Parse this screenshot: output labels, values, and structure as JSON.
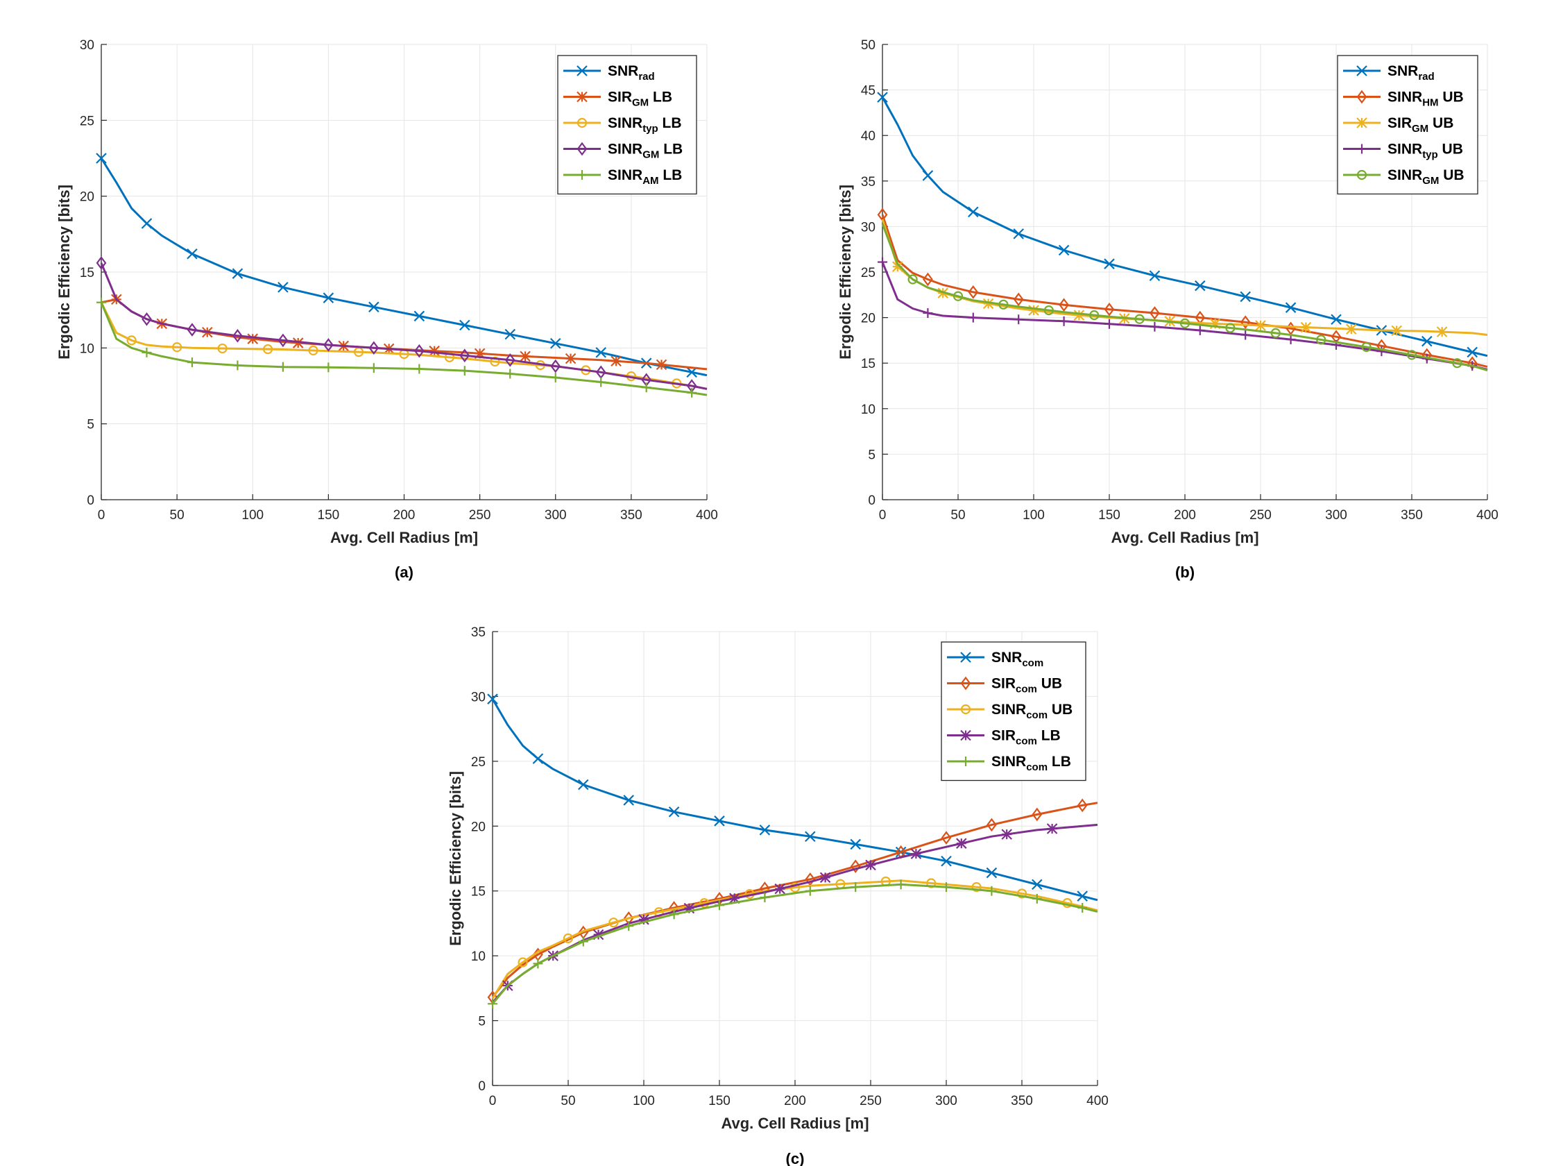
{
  "colors": {
    "blue": "#0072BD",
    "orange": "#D95319",
    "yellow": "#EDB120",
    "purple": "#7E2F8E",
    "green": "#77AC30"
  },
  "chart_data": [
    {
      "type": "line",
      "caption": "(a)",
      "xlabel": "Avg. Cell Radius [m]",
      "ylabel": "Ergodic Efficiency [bits]",
      "xlim": [
        0,
        400
      ],
      "ylim": [
        0,
        30
      ],
      "xticks": [
        0,
        50,
        100,
        150,
        200,
        250,
        300,
        350,
        400
      ],
      "yticks": [
        0,
        5,
        10,
        15,
        20,
        25,
        30
      ],
      "grid": true,
      "legend_position": "top-right",
      "x": [
        0,
        10,
        20,
        30,
        40,
        60,
        90,
        120,
        150,
        180,
        210,
        240,
        270,
        300,
        330,
        360,
        390,
        400
      ],
      "series": [
        {
          "name": "SNR",
          "sub": "rad",
          "suffix": "",
          "color": "#0072BD",
          "marker": "x",
          "values": [
            22.5,
            20.9,
            19.2,
            18.2,
            17.4,
            16.2,
            14.9,
            14.0,
            13.3,
            12.7,
            12.1,
            11.5,
            10.9,
            10.3,
            9.7,
            9.0,
            8.4,
            8.2
          ],
          "mx": [
            0,
            30,
            60,
            90,
            120,
            150,
            180,
            210,
            240,
            270,
            300,
            330,
            360,
            390
          ]
        },
        {
          "name": "SIR",
          "sub": "GM",
          "suffix": "LB",
          "color": "#D95319",
          "marker": "asterisk",
          "values": [
            13.0,
            13.2,
            12.4,
            11.9,
            11.6,
            11.2,
            10.7,
            10.4,
            10.2,
            10.0,
            9.85,
            9.7,
            9.5,
            9.35,
            9.2,
            9.0,
            8.7,
            8.6
          ],
          "mx": [
            10,
            40,
            70,
            100,
            130,
            160,
            190,
            220,
            250,
            280,
            310,
            340,
            370
          ]
        },
        {
          "name": "SINR",
          "sub": "typ",
          "suffix": "LB",
          "color": "#EDB120",
          "marker": "circle",
          "values": [
            13.0,
            11.0,
            10.5,
            10.2,
            10.1,
            10.0,
            9.95,
            9.9,
            9.8,
            9.7,
            9.55,
            9.3,
            9.0,
            8.8,
            8.4,
            8.0,
            7.5,
            7.3
          ],
          "mx": [
            20,
            50,
            80,
            110,
            140,
            170,
            200,
            230,
            260,
            290,
            320,
            350,
            380
          ]
        },
        {
          "name": "SINR",
          "sub": "GM",
          "suffix": "LB",
          "color": "#7E2F8E",
          "marker": "diamond",
          "values": [
            15.6,
            13.2,
            12.4,
            11.9,
            11.6,
            11.2,
            10.8,
            10.5,
            10.2,
            10.0,
            9.8,
            9.5,
            9.2,
            8.8,
            8.4,
            7.9,
            7.5,
            7.3
          ],
          "mx": [
            0,
            30,
            60,
            90,
            120,
            150,
            180,
            210,
            240,
            270,
            300,
            330,
            360,
            390
          ]
        },
        {
          "name": "SINR",
          "sub": "AM",
          "suffix": "LB",
          "color": "#77AC30",
          "marker": "plus",
          "values": [
            13.0,
            10.6,
            10.0,
            9.7,
            9.45,
            9.05,
            8.85,
            8.75,
            8.72,
            8.68,
            8.62,
            8.5,
            8.3,
            8.05,
            7.75,
            7.4,
            7.05,
            6.9
          ],
          "mx": [
            0,
            30,
            60,
            90,
            120,
            150,
            180,
            210,
            240,
            270,
            300,
            330,
            360,
            390
          ]
        }
      ]
    },
    {
      "type": "line",
      "caption": "(b)",
      "xlabel": "Avg. Cell Radius [m]",
      "ylabel": "Ergodic Efficiency [bits]",
      "xlim": [
        0,
        400
      ],
      "ylim": [
        0,
        50
      ],
      "xticks": [
        0,
        50,
        100,
        150,
        200,
        250,
        300,
        350,
        400
      ],
      "yticks": [
        0,
        5,
        10,
        15,
        20,
        25,
        30,
        35,
        40,
        45,
        50
      ],
      "grid": true,
      "legend_position": "top-right",
      "x": [
        0,
        10,
        20,
        30,
        40,
        60,
        90,
        120,
        150,
        180,
        210,
        240,
        270,
        300,
        330,
        360,
        390,
        400
      ],
      "series": [
        {
          "name": "SNR",
          "sub": "rad",
          "suffix": "",
          "color": "#0072BD",
          "marker": "x",
          "values": [
            44.2,
            41.2,
            37.8,
            35.6,
            33.8,
            31.6,
            29.2,
            27.4,
            25.9,
            24.6,
            23.5,
            22.3,
            21.1,
            19.8,
            18.6,
            17.4,
            16.2,
            15.8
          ],
          "mx": [
            0,
            30,
            60,
            90,
            120,
            150,
            180,
            210,
            240,
            270,
            300,
            330,
            360,
            390
          ]
        },
        {
          "name": "SINR",
          "sub": "HM",
          "suffix": "UB",
          "color": "#D95319",
          "marker": "diamond",
          "values": [
            31.3,
            26.3,
            24.9,
            24.2,
            23.6,
            22.8,
            22.0,
            21.4,
            20.9,
            20.5,
            20.0,
            19.5,
            18.8,
            17.9,
            16.9,
            15.9,
            15.0,
            14.6
          ],
          "mx": [
            0,
            30,
            60,
            90,
            120,
            150,
            180,
            210,
            240,
            270,
            300,
            330,
            360,
            390
          ]
        },
        {
          "name": "SIR",
          "sub": "GM",
          "suffix": "UB",
          "color": "#EDB120",
          "marker": "asterisk",
          "values": [
            30.8,
            25.6,
            24.2,
            23.3,
            22.7,
            21.8,
            21.0,
            20.4,
            20.0,
            19.7,
            19.4,
            19.2,
            19.0,
            18.8,
            18.6,
            18.5,
            18.3,
            18.1
          ],
          "mx": [
            10,
            40,
            70,
            100,
            130,
            160,
            190,
            220,
            250,
            280,
            310,
            340,
            370
          ]
        },
        {
          "name": "SINR",
          "sub": "typ",
          "suffix": "UB",
          "color": "#7E2F8E",
          "marker": "plus",
          "values": [
            26.1,
            22.0,
            21.0,
            20.5,
            20.2,
            20.0,
            19.8,
            19.6,
            19.3,
            19.0,
            18.6,
            18.1,
            17.6,
            17.0,
            16.3,
            15.5,
            14.7,
            14.3
          ],
          "mx": [
            0,
            30,
            60,
            90,
            120,
            150,
            180,
            210,
            240,
            270,
            300,
            330,
            360,
            390
          ]
        },
        {
          "name": "SINR",
          "sub": "GM",
          "suffix": "UB",
          "color": "#77AC30",
          "marker": "circle",
          "values": [
            30.3,
            25.9,
            24.2,
            23.3,
            22.8,
            21.9,
            21.2,
            20.6,
            20.1,
            19.7,
            19.2,
            18.7,
            18.1,
            17.3,
            16.5,
            15.6,
            14.7,
            14.2
          ],
          "mx": [
            20,
            50,
            80,
            110,
            140,
            170,
            200,
            230,
            260,
            290,
            320,
            350,
            380
          ]
        }
      ]
    },
    {
      "type": "line",
      "caption": "(c)",
      "xlabel": "Avg. Cell Radius [m]",
      "ylabel": "Ergodic Efficiency [bits]",
      "xlim": [
        0,
        400
      ],
      "ylim": [
        0,
        35
      ],
      "xticks": [
        0,
        50,
        100,
        150,
        200,
        250,
        300,
        350,
        400
      ],
      "yticks": [
        0,
        5,
        10,
        15,
        20,
        25,
        30,
        35
      ],
      "grid": true,
      "legend_position": "top-right",
      "x": [
        0,
        10,
        20,
        30,
        40,
        60,
        90,
        120,
        150,
        180,
        210,
        240,
        270,
        300,
        330,
        360,
        390,
        400
      ],
      "series": [
        {
          "name": "SNR",
          "sub": "com",
          "suffix": "",
          "color": "#0072BD",
          "marker": "x",
          "values": [
            29.8,
            27.8,
            26.2,
            25.2,
            24.4,
            23.2,
            22.0,
            21.1,
            20.4,
            19.7,
            19.2,
            18.6,
            18.0,
            17.3,
            16.4,
            15.5,
            14.6,
            14.3
          ],
          "mx": [
            0,
            30,
            60,
            90,
            120,
            150,
            180,
            210,
            240,
            270,
            300,
            330,
            360,
            390
          ]
        },
        {
          "name": "SIR",
          "sub": "com",
          "suffix": "UB",
          "color": "#D95319",
          "marker": "diamond",
          "values": [
            6.8,
            8.3,
            9.3,
            10.1,
            10.7,
            11.8,
            12.9,
            13.7,
            14.4,
            15.2,
            15.9,
            16.9,
            18.0,
            19.1,
            20.1,
            20.9,
            21.6,
            21.8
          ],
          "mx": [
            0,
            30,
            60,
            90,
            120,
            150,
            180,
            210,
            240,
            270,
            300,
            330,
            360,
            390
          ]
        },
        {
          "name": "SINR",
          "sub": "com",
          "suffix": "UB",
          "color": "#EDB120",
          "marker": "circle",
          "values": [
            6.7,
            8.6,
            9.5,
            10.3,
            10.8,
            11.9,
            12.9,
            13.6,
            14.3,
            15.0,
            15.4,
            15.6,
            15.8,
            15.5,
            15.2,
            14.6,
            13.8,
            13.5
          ],
          "mx": [
            20,
            50,
            80,
            110,
            140,
            170,
            200,
            230,
            260,
            290,
            320,
            350,
            380
          ]
        },
        {
          "name": "SIR",
          "sub": "com",
          "suffix": "LB",
          "color": "#7E2F8E",
          "marker": "asterisk",
          "values": [
            6.4,
            7.7,
            8.6,
            9.4,
            10.0,
            11.2,
            12.5,
            13.4,
            14.2,
            14.9,
            15.7,
            16.7,
            17.6,
            18.4,
            19.2,
            19.7,
            20.0,
            20.1
          ],
          "mx": [
            10,
            40,
            70,
            100,
            130,
            160,
            190,
            220,
            250,
            280,
            310,
            340,
            370
          ]
        },
        {
          "name": "SINR",
          "sub": "com",
          "suffix": "LB",
          "color": "#77AC30",
          "marker": "plus",
          "values": [
            6.3,
            7.7,
            8.6,
            9.4,
            10.0,
            11.1,
            12.3,
            13.2,
            13.9,
            14.5,
            15.0,
            15.3,
            15.5,
            15.3,
            15.0,
            14.4,
            13.7,
            13.4
          ],
          "mx": [
            0,
            30,
            60,
            90,
            120,
            150,
            180,
            210,
            240,
            270,
            300,
            330,
            360,
            390
          ]
        }
      ]
    }
  ]
}
